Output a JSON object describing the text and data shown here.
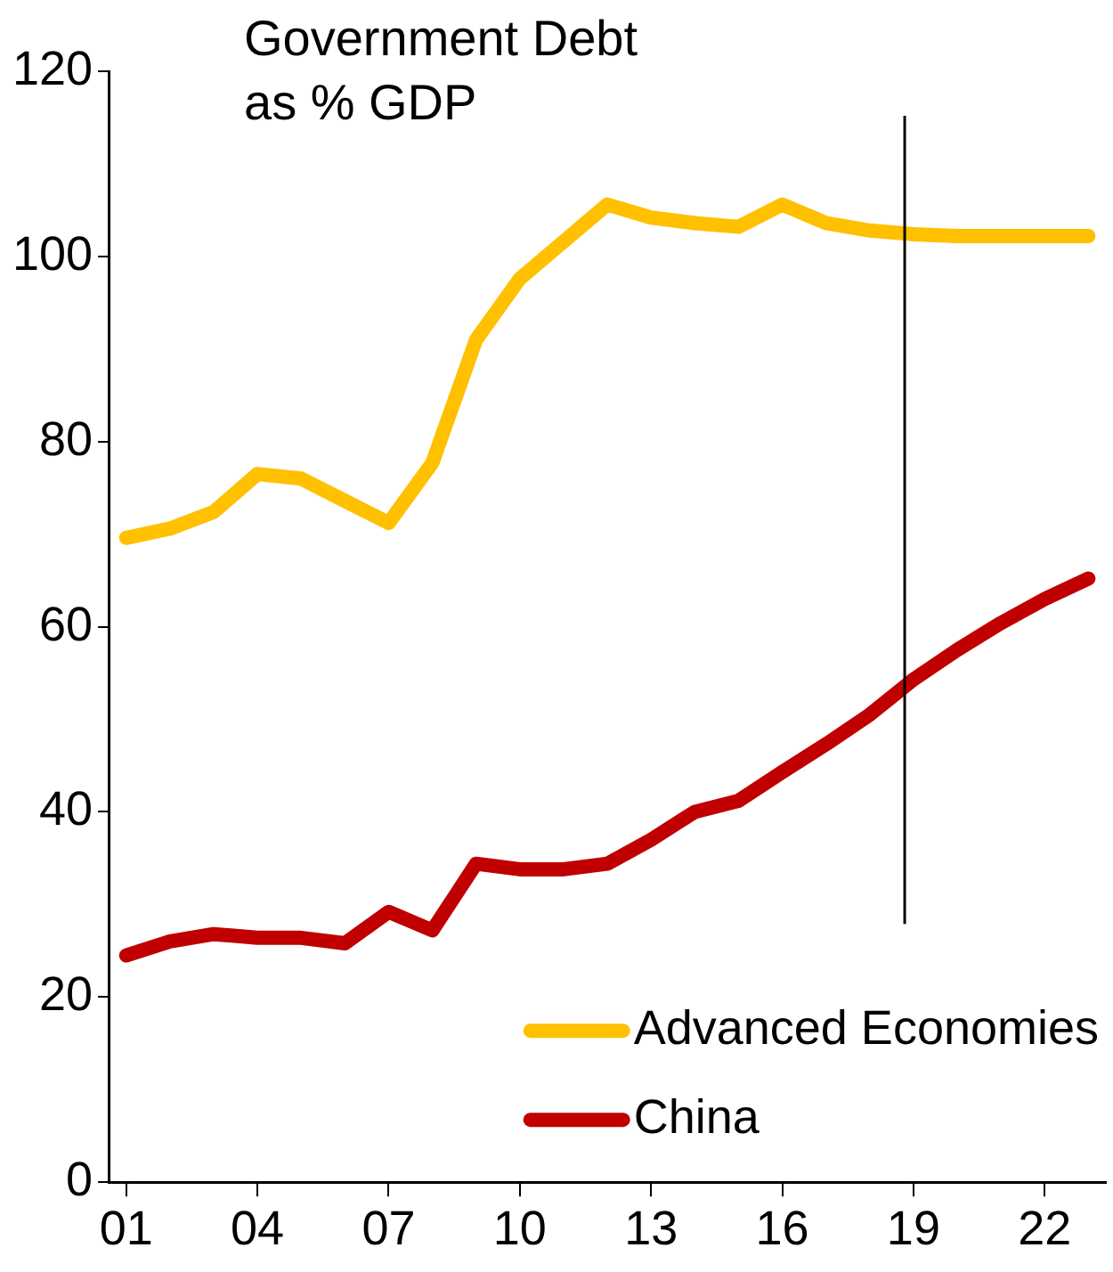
{
  "chart_data": {
    "type": "line",
    "title": "Government Debt as % GDP",
    "x": [
      2001,
      2002,
      2003,
      2004,
      2005,
      2006,
      2007,
      2008,
      2009,
      2010,
      2011,
      2012,
      2013,
      2014,
      2015,
      2016,
      2017,
      2018,
      2019,
      2020,
      2021,
      2022,
      2023
    ],
    "series": [
      {
        "name": "Advanced Economies",
        "color": "#ffc000",
        "values": [
          69.6,
          70.6,
          72.4,
          76.5,
          76,
          73.6,
          71.2,
          77.7,
          91,
          97.6,
          101.6,
          105.6,
          104.2,
          103.6,
          103.2,
          105.6,
          103.6,
          102.8,
          102.4,
          102.2,
          102.2,
          102.2,
          102.2
        ]
      },
      {
        "name": "China",
        "color": "#c00000",
        "values": [
          24.5,
          26,
          26.8,
          26.4,
          26.4,
          25.8,
          29.2,
          27.2,
          34.4,
          33.8,
          33.8,
          34.4,
          37,
          40,
          41.2,
          44.3,
          47.3,
          50.5,
          54.3,
          57.5,
          60.4,
          63,
          65.2
        ]
      }
    ],
    "xlim": [
      2000.6,
      2023.4
    ],
    "xticks": [
      {
        "value": 2001,
        "label": "01"
      },
      {
        "value": 2004,
        "label": "04"
      },
      {
        "value": 2007,
        "label": "07"
      },
      {
        "value": 2010,
        "label": "10"
      },
      {
        "value": 2013,
        "label": "13"
      },
      {
        "value": 2016,
        "label": "16"
      },
      {
        "value": 2019,
        "label": "19"
      },
      {
        "value": 2022,
        "label": "22"
      }
    ],
    "ylim": [
      0,
      120
    ],
    "yticks": [
      0,
      20,
      40,
      60,
      80,
      100,
      120
    ],
    "ref_lines": [
      {
        "axis": "x",
        "value": 2018.8,
        "color": "#000000"
      }
    ],
    "grid": false,
    "legend": "bottom right",
    "marker": "none",
    "line_style": "solid"
  }
}
